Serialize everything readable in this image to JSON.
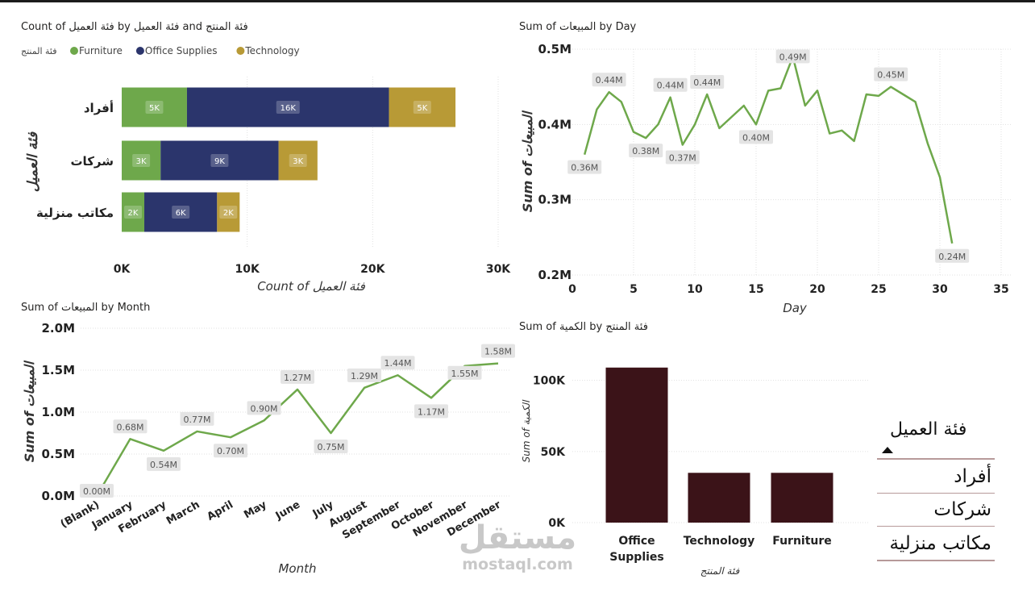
{
  "watermark": {
    "main": "مستقل",
    "sub": "mostaql.com"
  },
  "slicer": {
    "title": "فئة العميل",
    "items": [
      "أفراد",
      "شركات",
      "مكاتب منزلية"
    ]
  },
  "colors": {
    "furniture": "#6EA84B",
    "office_supplies": "#2B356C",
    "technology": "#B89A36",
    "line": "#6EA84B",
    "column": "#3B1318",
    "grid": "#E1E1E1",
    "label_bg": "#E4E4E4"
  },
  "chart_data": [
    {
      "id": "customer-category",
      "type": "bar",
      "stacked": true,
      "orientation": "horizontal",
      "title": "Count of فئة العميل by فئة العميل and فئة المنتج",
      "legend_title": "فئة المنتج",
      "legend_position": "top-left",
      "categories": [
        "أفراد",
        "شركات",
        "مكاتب منزلية"
      ],
      "series": [
        {
          "name": "Furniture",
          "values": [
            5200,
            3100,
            1800
          ],
          "labels": [
            "5K",
            "3K",
            "2K"
          ]
        },
        {
          "name": "Office Supplies",
          "values": [
            16100,
            9400,
            5800
          ],
          "labels": [
            "16K",
            "9K",
            "6K"
          ]
        },
        {
          "name": "Technology",
          "values": [
            5300,
            3100,
            1800
          ],
          "labels": [
            "5K",
            "3K",
            "2K"
          ]
        }
      ],
      "xlabel": "Count of فئة العميل",
      "ylabel": "فئة العميل",
      "xlim": [
        0,
        30000
      ],
      "xticks": [
        0,
        10000,
        20000,
        30000
      ],
      "xtick_labels": [
        "0K",
        "10K",
        "20K",
        "30K"
      ],
      "grid": true
    },
    {
      "id": "sales-by-day",
      "type": "line",
      "title": "Sum of المبيعات by Day",
      "x": [
        1,
        2,
        3,
        4,
        5,
        6,
        7,
        8,
        9,
        10,
        11,
        12,
        13,
        14,
        15,
        16,
        17,
        18,
        19,
        20,
        21,
        22,
        23,
        24,
        25,
        26,
        27,
        28,
        29,
        30,
        31
      ],
      "y": [
        0.36,
        0.42,
        0.443,
        0.43,
        0.39,
        0.382,
        0.4,
        0.436,
        0.373,
        0.4,
        0.44,
        0.395,
        0.41,
        0.425,
        0.4,
        0.445,
        0.448,
        0.49,
        0.425,
        0.445,
        0.388,
        0.392,
        0.378,
        0.44,
        0.438,
        0.45,
        0.44,
        0.43,
        0.375,
        0.33,
        0.242
      ],
      "data_labels": [
        {
          "x": 1,
          "text": "0.36M",
          "pos": "below"
        },
        {
          "x": 3,
          "text": "0.44M",
          "pos": "above"
        },
        {
          "x": 6,
          "text": "0.38M",
          "pos": "below"
        },
        {
          "x": 8,
          "text": "0.44M",
          "pos": "above"
        },
        {
          "x": 9,
          "text": "0.37M",
          "pos": "below"
        },
        {
          "x": 11,
          "text": "0.44M",
          "pos": "above"
        },
        {
          "x": 15,
          "text": "0.40M",
          "pos": "below"
        },
        {
          "x": 18,
          "text": "0.49M",
          "pos": "on"
        },
        {
          "x": 26,
          "text": "0.45M",
          "pos": "above"
        },
        {
          "x": 31,
          "text": "0.24M",
          "pos": "below"
        }
      ],
      "xlabel": "Day",
      "ylabel": "Sum of المبيعات",
      "xlim": [
        0,
        35
      ],
      "xticks": [
        0,
        5,
        10,
        15,
        20,
        25,
        30,
        35
      ],
      "ylim": [
        0.2,
        0.5
      ],
      "yticks": [
        0.2,
        0.3,
        0.4,
        0.5
      ],
      "ytick_labels": [
        "0.2M",
        "0.3M",
        "0.4M",
        "0.5M"
      ],
      "grid": true
    },
    {
      "id": "sales-by-month",
      "type": "line",
      "title": "Sum of المبيعات by Month",
      "categories": [
        "(Blank)",
        "January",
        "February",
        "March",
        "April",
        "May",
        "June",
        "July",
        "August",
        "September",
        "October",
        "November",
        "December"
      ],
      "values": [
        0.0,
        0.68,
        0.54,
        0.77,
        0.7,
        0.9,
        1.27,
        0.75,
        1.29,
        1.44,
        1.17,
        1.55,
        1.58
      ],
      "data_labels": [
        "0.00M",
        "0.68M",
        "0.54M",
        "0.77M",
        "0.70M",
        "0.90M",
        "1.27M",
        "0.75M",
        "1.29M",
        "1.44M",
        "1.17M",
        "1.55M",
        "1.58M"
      ],
      "label_positions": [
        "on",
        "above",
        "below",
        "above",
        "below",
        "above",
        "above",
        "below",
        "above",
        "above",
        "below",
        "on",
        "above"
      ],
      "xlabel": "Month",
      "ylabel": "Sum of المبيعات",
      "ylim": [
        0,
        2.0
      ],
      "yticks": [
        0,
        0.5,
        1.0,
        1.5,
        2.0
      ],
      "ytick_labels": [
        "0.0M",
        "0.5M",
        "1.0M",
        "1.5M",
        "2.0M"
      ],
      "grid": true
    },
    {
      "id": "quantity-by-product",
      "type": "bar",
      "title": "Sum of الكمية by فئة المنتج",
      "categories": [
        [
          "Office",
          "Supplies"
        ],
        [
          "Technology"
        ],
        [
          "Furniture"
        ]
      ],
      "values": [
        109000,
        35000,
        35000
      ],
      "xlabel": "فئة المنتج",
      "ylabel": "Sum of الكمية",
      "ylim": [
        0,
        110000
      ],
      "yticks": [
        0,
        50000,
        100000
      ],
      "ytick_labels": [
        "0K",
        "50K",
        "100K"
      ],
      "grid": true
    }
  ]
}
